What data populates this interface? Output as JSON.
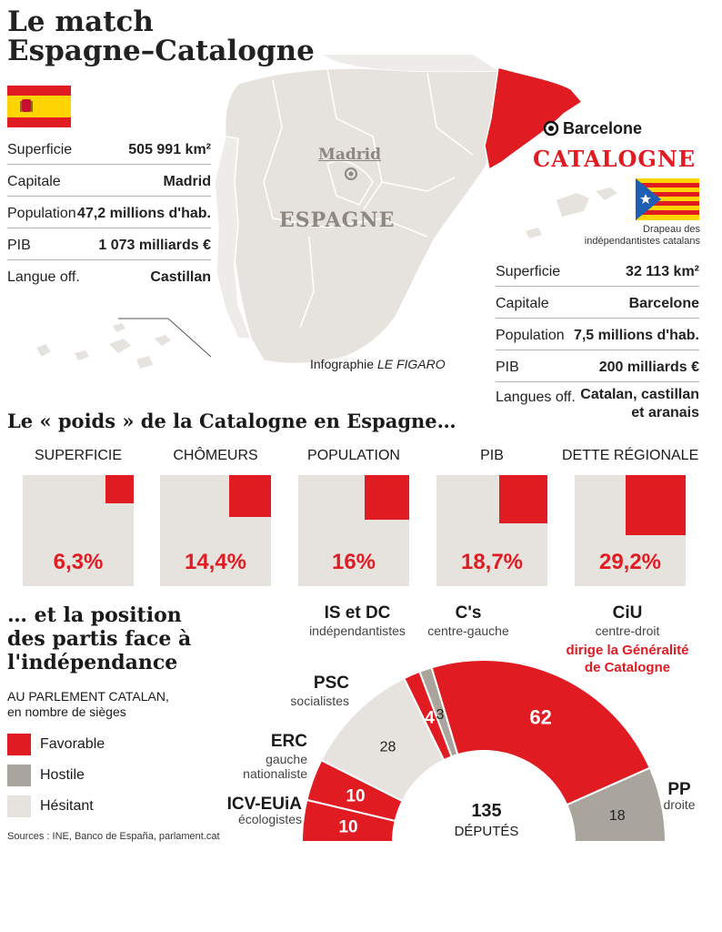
{
  "title": {
    "line1": "Le match",
    "line2": "Espagne–Catalogne"
  },
  "colors": {
    "red": "#e11b22",
    "grey": "#a9a59d",
    "light": "#e6e3de",
    "map": "#e6e3de"
  },
  "spain": {
    "flag_icon": "spain-flag",
    "stats": [
      {
        "label": "Superficie",
        "value": "505 991 km²"
      },
      {
        "label": "Capitale",
        "value": "Madrid"
      },
      {
        "label": "Population",
        "value": "47,2 millions d'hab."
      },
      {
        "label": "PIB",
        "value": "1 073 milliards €"
      },
      {
        "label": "Langue off.",
        "value": "Castillan"
      }
    ]
  },
  "catalonia": {
    "flag_icon": "estelada-flag",
    "flag_caption_1": "Drapeau des",
    "flag_caption_2": "indépendantistes catalans",
    "stats": [
      {
        "label": "Superficie",
        "value": "32 113 km²"
      },
      {
        "label": "Capitale",
        "value": "Barcelone"
      },
      {
        "label": "Population",
        "value": "7,5 millions d'hab."
      },
      {
        "label": "PIB",
        "value": "200 milliards €"
      },
      {
        "label": "Langues off.",
        "value": "Catalan, castillan",
        "value2": "et aranais"
      }
    ]
  },
  "map": {
    "madrid": "Madrid",
    "espagne": "ESPAGNE",
    "barcelone": "Barcelone",
    "catalogne": "CATALOGNE",
    "credit_prefix": "Infographie ",
    "credit_source": "LE FIGARO"
  },
  "weight": {
    "heading": "Le « poids » de la Catalogne en Espagne…"
  },
  "position": {
    "heading_1": "… et la position",
    "heading_2": "des partis face à",
    "heading_3": "l'indépendance",
    "parliament_1": "AU PARLEMENT CATALAN,",
    "parliament_2": "en nombre de sièges",
    "legend": [
      {
        "label": "Favorable",
        "color": "#e11b22"
      },
      {
        "label": "Hostile",
        "color": "#a9a59d"
      },
      {
        "label": "Hésitant",
        "color": "#e6e3de"
      }
    ],
    "sources": "Sources : INE, Banco de España, parlament.cat",
    "total_value": "135",
    "total_label": "DÉPUTÉS",
    "parties": [
      {
        "name": "ICV-EUiA",
        "desc": "écologistes"
      },
      {
        "name": "ERC",
        "desc": "gauche",
        "desc2": "nationaliste"
      },
      {
        "name": "PSC",
        "desc": "socialistes"
      },
      {
        "name": "IS et DC",
        "desc": "indépendantistes"
      },
      {
        "name": "C's",
        "desc": "centre-gauche"
      },
      {
        "name": "CiU",
        "desc": "centre-droit",
        "note1": "dirige la Généralité",
        "note2": "de Catalogne"
      },
      {
        "name": "PP",
        "desc": "droite"
      }
    ]
  },
  "chart_data": [
    {
      "type": "bar",
      "title": "Le « poids » de la Catalogne en Espagne…",
      "categories": [
        "SUPERFICIE",
        "CHÔMEURS",
        "POPULATION",
        "PIB",
        "DETTE RÉGIONALE"
      ],
      "values": [
        6.3,
        14.4,
        16,
        18.7,
        29.2
      ],
      "value_labels": [
        "6,3%",
        "14,4%",
        "16%",
        "18,7%",
        "29,2%"
      ],
      "ylim": [
        0,
        100
      ]
    },
    {
      "type": "pie",
      "title": "AU PARLEMENT CATALAN, en nombre de sièges",
      "total": 135,
      "slices": [
        {
          "party": "ICV-EUiA",
          "seats": 10,
          "stance": "Favorable"
        },
        {
          "party": "ERC",
          "seats": 10,
          "stance": "Favorable"
        },
        {
          "party": "PSC",
          "seats": 28,
          "stance": "Hésitant"
        },
        {
          "party": "IS et DC",
          "seats": 4,
          "stance": "Favorable"
        },
        {
          "party": "C's",
          "seats": 3,
          "stance": "Hostile"
        },
        {
          "party": "CiU",
          "seats": 62,
          "stance": "Favorable"
        },
        {
          "party": "PP",
          "seats": 18,
          "stance": "Hostile"
        }
      ]
    }
  ]
}
